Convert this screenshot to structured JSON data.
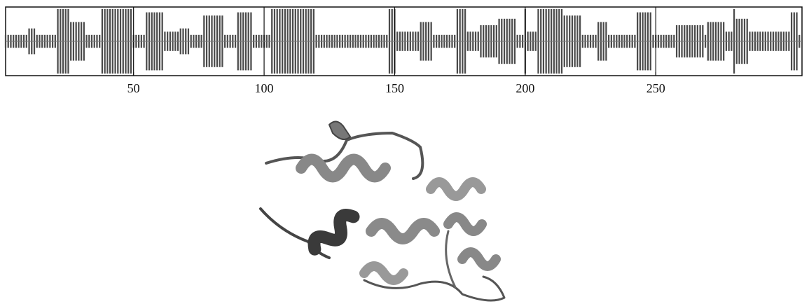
{
  "chart_data": {
    "type": "bar",
    "x": [
      1,
      2,
      3,
      4,
      5,
      6,
      7,
      8,
      9,
      10,
      11,
      12,
      13,
      14,
      15,
      16,
      17,
      18,
      19,
      20,
      21,
      22,
      23,
      24,
      25,
      26,
      27,
      28,
      29,
      30,
      31,
      32,
      33,
      34,
      35,
      36,
      37,
      38,
      39,
      40,
      41,
      42,
      43,
      44,
      45,
      46,
      47,
      48,
      49,
      50,
      51,
      52,
      53,
      54,
      55,
      56,
      57,
      58,
      59,
      60,
      61,
      62,
      63,
      64,
      65,
      66,
      67,
      68,
      69,
      70,
      71,
      72,
      73,
      74,
      75,
      76,
      77,
      78,
      79,
      80,
      81,
      82,
      83,
      84,
      85,
      86,
      87,
      88,
      89,
      90,
      91,
      92,
      93,
      94,
      95,
      96,
      97,
      98,
      99,
      100,
      101,
      102,
      103,
      104,
      105,
      106,
      107,
      108,
      109,
      110,
      111,
      112,
      113,
      114,
      115,
      116,
      117,
      118,
      119,
      120,
      121,
      122,
      123,
      124,
      125,
      126,
      127,
      128,
      129,
      130,
      131,
      132,
      133,
      134,
      135,
      136,
      137,
      138,
      139,
      140,
      141,
      142,
      143,
      144,
      145,
      146,
      147,
      148,
      149,
      150,
      151,
      152,
      153,
      154,
      155,
      156,
      157,
      158,
      159,
      160,
      161,
      162,
      163,
      164,
      165,
      166,
      167,
      168,
      169,
      170,
      171,
      172,
      173,
      174,
      175,
      176,
      177,
      178,
      179,
      180,
      181,
      182,
      183,
      184,
      185,
      186,
      187,
      188,
      189,
      190,
      191,
      192,
      193,
      194,
      195,
      196,
      197,
      198,
      199,
      200,
      201,
      202,
      203,
      204,
      205,
      206,
      207,
      208,
      209,
      210,
      211,
      212,
      213,
      214,
      215,
      216,
      217,
      218,
      219,
      220,
      221,
      222,
      223,
      224,
      225,
      226,
      227,
      228,
      229,
      230,
      231,
      232,
      233,
      234,
      235,
      236,
      237,
      238,
      239,
      240,
      241,
      242,
      243,
      244,
      245,
      246,
      247,
      248,
      249,
      250,
      251,
      252,
      253,
      254,
      255,
      256,
      257,
      258,
      259,
      260,
      261,
      262,
      263,
      264,
      265,
      266,
      267,
      268,
      269,
      270,
      271,
      272,
      273,
      274,
      275,
      276,
      277,
      278,
      279,
      280,
      281,
      282,
      283,
      284,
      285,
      286,
      287,
      288,
      289,
      290,
      291,
      292,
      293,
      294,
      295,
      296,
      297,
      298,
      299,
      300,
      301,
      302,
      303,
      304,
      305
    ],
    "values": [
      2,
      2,
      2,
      2,
      2,
      2,
      2,
      2,
      2,
      4,
      4,
      4,
      2,
      2,
      2,
      2,
      2,
      2,
      2,
      2,
      10,
      10,
      10,
      10,
      10,
      6,
      6,
      6,
      6,
      6,
      6,
      2,
      2,
      2,
      2,
      2,
      2,
      10,
      10,
      10,
      10,
      10,
      10,
      10,
      10,
      10,
      10,
      10,
      10,
      2,
      2,
      2,
      2,
      2,
      9,
      9,
      9,
      9,
      9,
      9,
      9,
      3,
      3,
      3,
      3,
      3,
      3,
      4,
      4,
      4,
      4,
      2,
      2,
      2,
      2,
      2,
      8,
      8,
      8,
      8,
      8,
      8,
      8,
      8,
      2,
      2,
      2,
      2,
      2,
      9,
      9,
      9,
      9,
      9,
      9,
      2,
      2,
      2,
      2,
      2,
      2,
      2,
      10,
      10,
      10,
      10,
      10,
      10,
      10,
      10,
      10,
      10,
      10,
      10,
      10,
      10,
      10,
      10,
      10,
      2,
      2,
      2,
      2,
      2,
      2,
      2,
      2,
      2,
      2,
      2,
      2,
      2,
      2,
      2,
      2,
      2,
      2,
      2,
      2,
      2,
      2,
      2,
      2,
      2,
      2,
      2,
      2,
      10,
      10,
      10,
      3,
      3,
      3,
      3,
      3,
      3,
      3,
      3,
      3,
      6,
      6,
      6,
      6,
      6,
      2,
      2,
      2,
      2,
      2,
      2,
      2,
      2,
      2,
      10,
      10,
      10,
      10,
      3,
      3,
      3,
      3,
      3,
      5,
      5,
      5,
      5,
      5,
      5,
      5,
      7,
      7,
      7,
      7,
      7,
      7,
      7,
      2,
      2,
      2,
      10,
      3,
      3,
      3,
      3,
      10,
      10,
      10,
      10,
      10,
      10,
      10,
      10,
      10,
      10,
      8,
      8,
      8,
      8,
      8,
      8,
      8,
      2,
      2,
      2,
      2,
      2,
      2,
      6,
      6,
      6,
      6,
      2,
      2,
      2,
      2,
      2,
      2,
      2,
      2,
      2,
      2,
      2,
      9,
      9,
      9,
      9,
      9,
      9,
      2,
      2,
      2,
      2,
      2,
      2,
      2,
      2,
      2,
      5,
      5,
      5,
      5,
      5,
      5,
      5,
      5,
      5,
      5,
      5,
      2,
      6,
      6,
      6,
      6,
      6,
      6,
      6,
      3,
      3,
      3,
      10,
      7,
      7,
      7,
      7,
      7,
      3,
      3,
      3,
      3,
      3,
      3,
      3,
      3,
      3,
      3,
      3,
      3,
      3,
      3,
      3,
      3,
      9,
      9,
      9,
      2
    ],
    "color": "#4a4a4a",
    "xlim": [
      1,
      306
    ],
    "xticks": [
      50,
      100,
      150,
      200,
      250
    ],
    "ylim": [
      0,
      10
    ],
    "grid": true
  }
}
